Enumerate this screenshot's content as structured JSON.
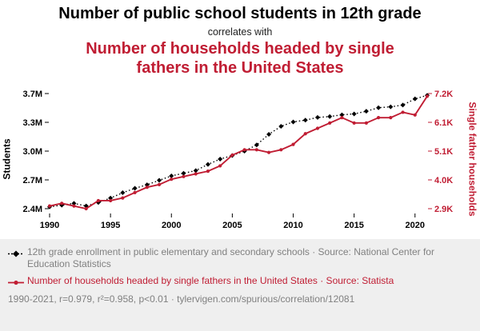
{
  "header": {
    "title": "Number of public school students in 12th grade",
    "subtitle": "correlates with",
    "secondary_title": "Number of households headed by single fathers in the United States"
  },
  "colors": {
    "accent_red": "#c01d33",
    "series_black": "#000000",
    "muted_gray": "#808080",
    "footer_background": "#efefef"
  },
  "chart_data": {
    "type": "line",
    "title": "Number of public school students in 12th grade correlates with Number of households headed by single fathers in the United States",
    "x": [
      1990,
      1991,
      1992,
      1993,
      1994,
      1995,
      1996,
      1997,
      1998,
      1999,
      2000,
      2001,
      2002,
      2003,
      2004,
      2005,
      2006,
      2007,
      2008,
      2009,
      2010,
      2011,
      2012,
      2013,
      2014,
      2015,
      2016,
      2017,
      2018,
      2019,
      2020,
      2021
    ],
    "x_ticks": [
      1990,
      1995,
      2000,
      2005,
      2010,
      2015,
      2020
    ],
    "left_axis": {
      "label": "Students",
      "ticks": [
        "2.4M",
        "2.7M",
        "3.0M",
        "3.3M",
        "3.7M"
      ],
      "min": 2.4,
      "max": 3.7
    },
    "right_axis": {
      "label": "Single father households",
      "ticks": [
        "2.9K",
        "4.0K",
        "5.1K",
        "6.1K",
        "7.2K"
      ],
      "min": 2.9,
      "max": 7.2
    },
    "grid": false,
    "legend_position": "bottom",
    "series": [
      {
        "name": "12th grade enrollment in public elementary and secondary schools",
        "axis": "left",
        "units": "millions of students",
        "color": "#000000",
        "line_style": "dotted",
        "marker": "diamond",
        "values": [
          2.42,
          2.44,
          2.46,
          2.43,
          2.47,
          2.52,
          2.58,
          2.63,
          2.67,
          2.72,
          2.77,
          2.8,
          2.83,
          2.9,
          2.96,
          3.0,
          3.05,
          3.12,
          3.24,
          3.33,
          3.38,
          3.4,
          3.43,
          3.44,
          3.46,
          3.47,
          3.5,
          3.54,
          3.55,
          3.57,
          3.64,
          3.68
        ]
      },
      {
        "name": "Number of households headed by single fathers in the United States",
        "axis": "right",
        "units": "thousands of households",
        "color": "#c01d33",
        "line_style": "solid",
        "marker": "dot",
        "values": [
          3.0,
          3.1,
          3.0,
          2.9,
          3.2,
          3.2,
          3.3,
          3.5,
          3.7,
          3.8,
          4.0,
          4.1,
          4.2,
          4.3,
          4.5,
          4.9,
          5.1,
          5.1,
          5.0,
          5.1,
          5.3,
          5.7,
          5.9,
          6.1,
          6.3,
          6.1,
          6.1,
          6.3,
          6.3,
          6.5,
          6.4,
          7.1
        ]
      }
    ]
  },
  "legend": {
    "items": [
      {
        "text": "12th grade enrollment in public elementary and secondary schools · Source: National Center for Education Statistics"
      },
      {
        "text": "Number of households headed by single fathers in the United States · Source: Statista"
      }
    ]
  },
  "footnote": "1990-2021, r=0.979, r²=0.958, p<0.01 · tylervigen.com/spurious/correlation/12081"
}
